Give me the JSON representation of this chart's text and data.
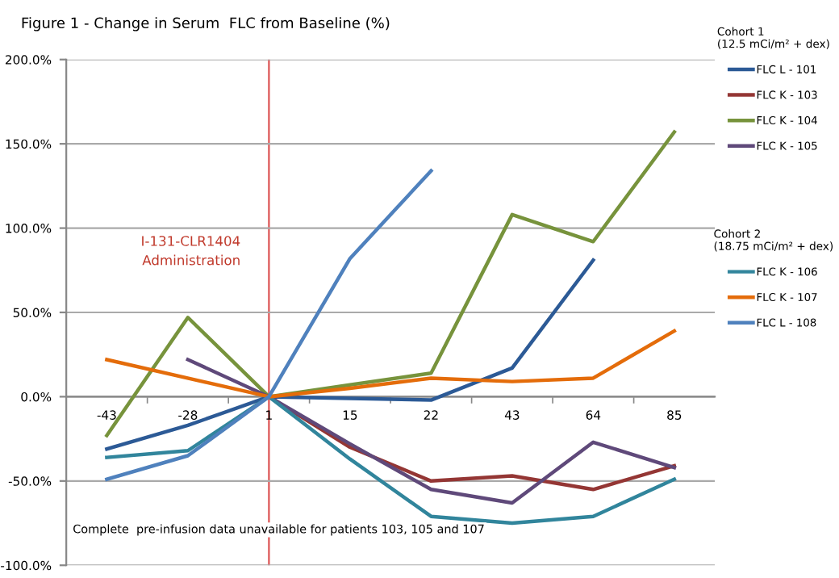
{
  "chart_data": {
    "type": "line",
    "title": "Figure 1 - Change in Serum  FLC from Baseline (%)",
    "categories": [
      "-43",
      "-28",
      "1",
      "15",
      "22",
      "43",
      "64",
      "85"
    ],
    "series": [
      {
        "name": "FLC L - 101",
        "color": "#2c5a96",
        "values": [
          -31,
          -17,
          0,
          -1,
          -2,
          17,
          81,
          null
        ]
      },
      {
        "name": "FLC K - 103",
        "color": "#943634",
        "values": [
          null,
          null,
          0,
          -30,
          -50,
          -47,
          -55,
          -41
        ]
      },
      {
        "name": "FLC K - 104",
        "color": "#77933c",
        "values": [
          -23,
          47,
          0,
          7,
          14,
          108,
          92,
          157
        ]
      },
      {
        "name": "FLC K - 105",
        "color": "#5f497a",
        "values": [
          null,
          22,
          0,
          -28,
          -55,
          -63,
          -27,
          -42
        ]
      },
      {
        "name": "FLC K - 106",
        "color": "#31859c",
        "values": [
          -36,
          -32,
          0,
          -37,
          -71,
          -75,
          -71,
          -49
        ]
      },
      {
        "name": "FLC K - 107",
        "color": "#e46c0a",
        "values": [
          22,
          null,
          0,
          5,
          11,
          9,
          11,
          39
        ]
      },
      {
        "name": "FLC L - 108",
        "color": "#4f81bd",
        "values": [
          -49,
          -35,
          0,
          82,
          134,
          null,
          null,
          null
        ]
      }
    ],
    "ylim": [
      -100,
      200
    ],
    "yticks": [
      {
        "value": -100,
        "label": "-100.0%"
      },
      {
        "value": -50,
        "label": "-50.0%"
      },
      {
        "value": 0,
        "label": "0.0%"
      },
      {
        "value": 50,
        "label": "50.0%"
      },
      {
        "value": 100,
        "label": "100.0%"
      },
      {
        "value": 150,
        "label": "150.0%"
      },
      {
        "value": 200,
        "label": "200.0%"
      }
    ],
    "grid": "y",
    "legend": "right",
    "marker": "none",
    "line_style": "solid",
    "ref_lines": [
      {
        "axis": "x",
        "value": "1",
        "label": "I-131-CLR1404\nAdministration",
        "color": "#e06666"
      }
    ],
    "annotations": [
      "Complete  pre-infusion data unavailable for patients 103, 105 and 107",
      "Cohort 1\n(12.5 mCi/m² + dex)",
      "Cohort 2\n(18.75 mCi/m² + dex)"
    ]
  }
}
